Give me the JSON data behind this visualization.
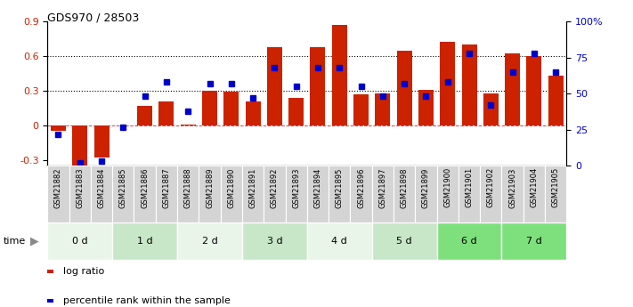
{
  "title": "GDS970 / 28503",
  "samples": [
    "GSM21882",
    "GSM21883",
    "GSM21884",
    "GSM21885",
    "GSM21886",
    "GSM21887",
    "GSM21888",
    "GSM21889",
    "GSM21890",
    "GSM21891",
    "GSM21892",
    "GSM21893",
    "GSM21894",
    "GSM21895",
    "GSM21896",
    "GSM21897",
    "GSM21898",
    "GSM21899",
    "GSM21900",
    "GSM21901",
    "GSM21902",
    "GSM21903",
    "GSM21904",
    "GSM21905"
  ],
  "log_ratio": [
    -0.05,
    -0.35,
    -0.28,
    0.0,
    0.17,
    0.21,
    0.01,
    0.3,
    0.29,
    0.21,
    0.68,
    0.24,
    0.68,
    0.87,
    0.27,
    0.28,
    0.65,
    0.31,
    0.72,
    0.7,
    0.28,
    0.62,
    0.6,
    0.43
  ],
  "percentile_rank": [
    0.22,
    0.02,
    0.03,
    0.27,
    0.48,
    0.58,
    0.38,
    0.57,
    0.57,
    0.47,
    0.68,
    0.55,
    0.68,
    0.68,
    0.55,
    0.48,
    0.57,
    0.48,
    0.58,
    0.78,
    0.42,
    0.65,
    0.78,
    0.65
  ],
  "bar_color": "#cc2200",
  "dot_color": "#0000cc",
  "ylim_left": [
    -0.35,
    0.9
  ],
  "ylim_right": [
    0.0,
    1.0
  ],
  "yticks_left": [
    -0.3,
    0.0,
    0.3,
    0.6,
    0.9
  ],
  "ytick_labels_left": [
    "-0.3",
    "0",
    "0.3",
    "0.6",
    "0.9"
  ],
  "yticks_right": [
    0.0,
    0.25,
    0.5,
    0.75,
    1.0
  ],
  "ytick_labels_right": [
    "0",
    "25",
    "50",
    "75",
    "100%"
  ],
  "hlines": [
    0.3,
    0.6
  ],
  "legend_log_ratio": "log ratio",
  "legend_percentile": "percentile rank within the sample",
  "groups": [
    {
      "label": "0 d",
      "indices": [
        0,
        1,
        2
      ],
      "color": "#e8f5e8"
    },
    {
      "label": "1 d",
      "indices": [
        3,
        4,
        5
      ],
      "color": "#c8e6c8"
    },
    {
      "label": "2 d",
      "indices": [
        6,
        7,
        8
      ],
      "color": "#e8f5e8"
    },
    {
      "label": "3 d",
      "indices": [
        9,
        10,
        11
      ],
      "color": "#c8e6c8"
    },
    {
      "label": "4 d",
      "indices": [
        12,
        13,
        14
      ],
      "color": "#e8f5e8"
    },
    {
      "label": "5 d",
      "indices": [
        15,
        16,
        17
      ],
      "color": "#c8e6c8"
    },
    {
      "label": "6 d",
      "indices": [
        18,
        19,
        20
      ],
      "color": "#7de07d"
    },
    {
      "label": "7 d",
      "indices": [
        21,
        22,
        23
      ],
      "color": "#7de07d"
    }
  ],
  "xtick_bg": "#d4d4d4"
}
